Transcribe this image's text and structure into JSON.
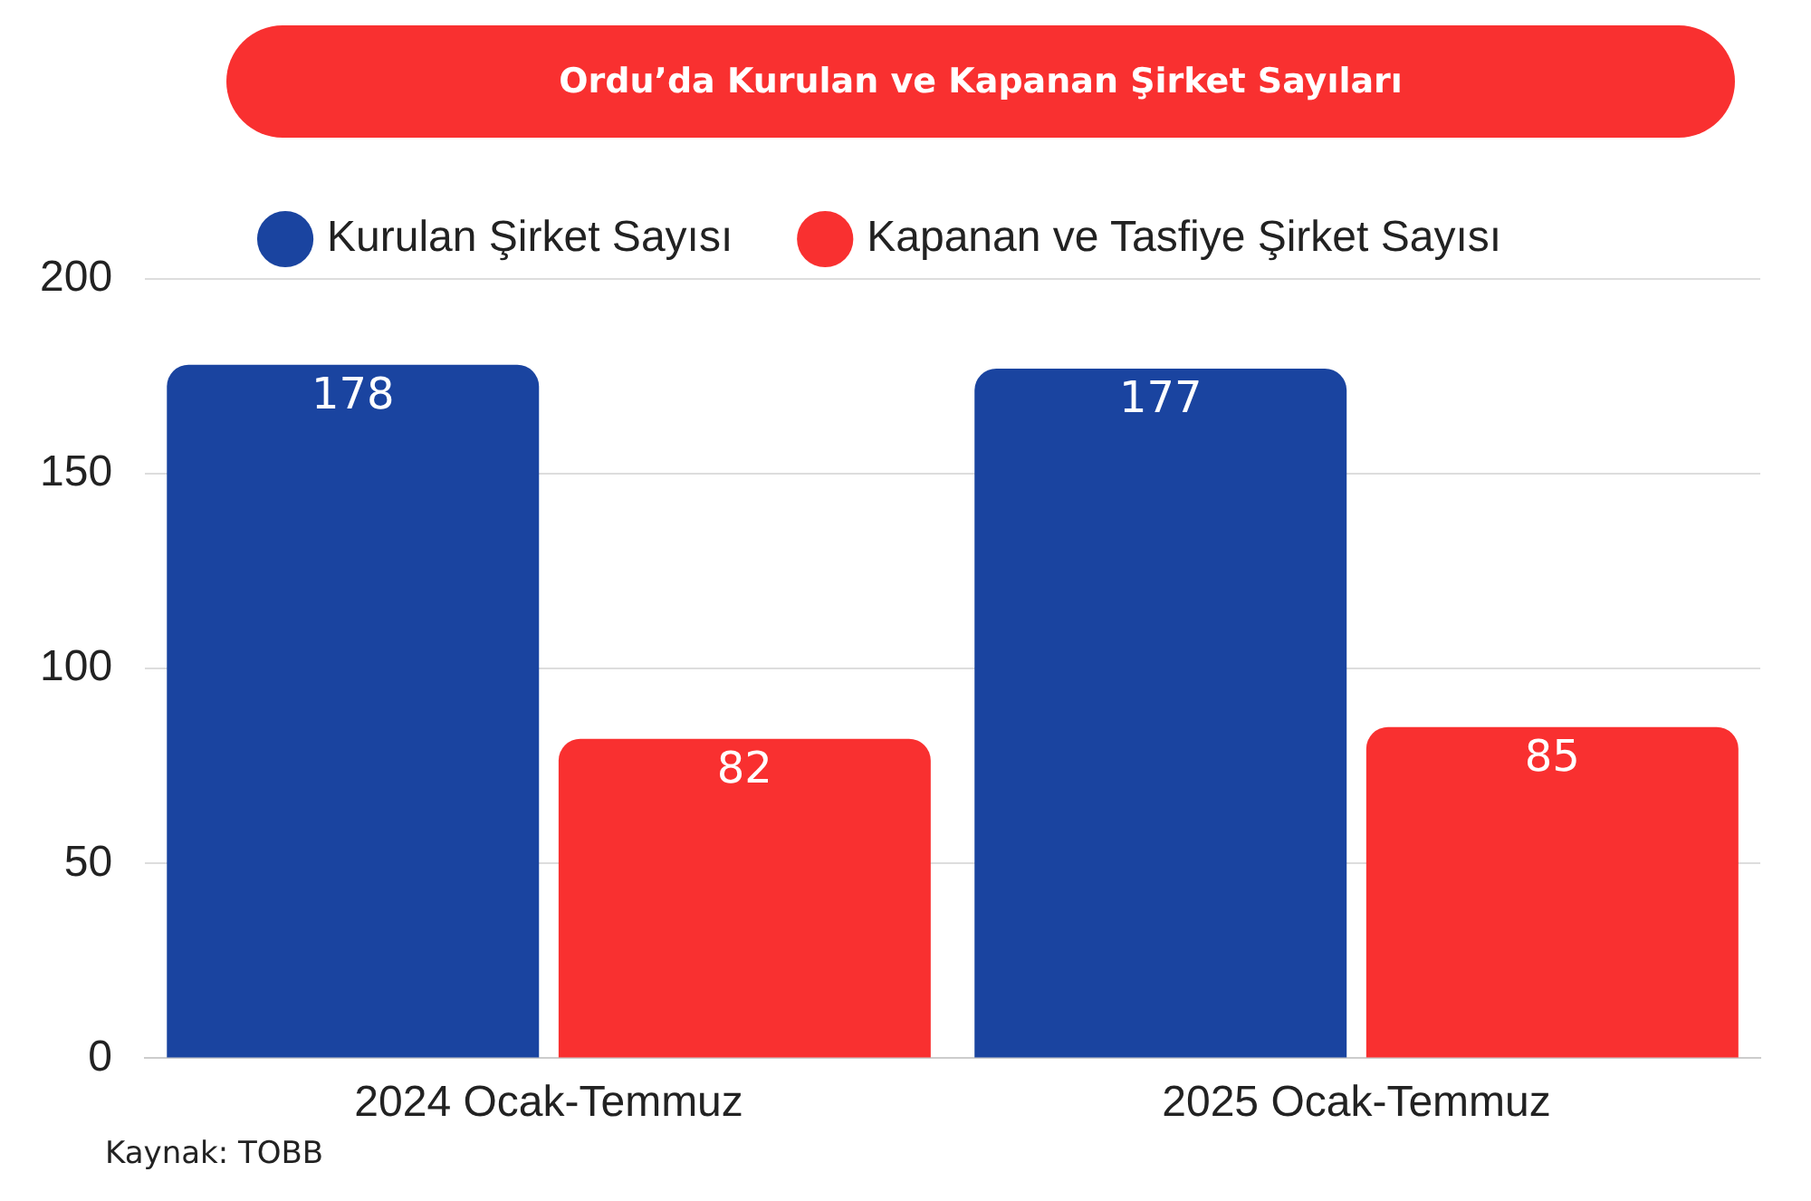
{
  "chart_data": {
    "type": "bar",
    "title": "Ordu’da Kurulan ve Kapanan Şirket Sayıları",
    "categories": [
      "2024 Ocak-Temmuz",
      "2025 Ocak-Temmuz"
    ],
    "series": [
      {
        "name": "Kurulan Şirket Sayısı",
        "color": "#1a44a0",
        "values": [
          178,
          177
        ]
      },
      {
        "name": "Kapanan ve Tasfiye Şirket Sayısı",
        "color": "#f93030",
        "values": [
          82,
          85
        ]
      }
    ],
    "ylim": [
      0,
      200
    ],
    "yticks": [
      0,
      50,
      100,
      150,
      200
    ],
    "grid": "y",
    "legend": "top",
    "data_labels": true,
    "annotations": [
      "Kaynak: TOBB"
    ]
  }
}
